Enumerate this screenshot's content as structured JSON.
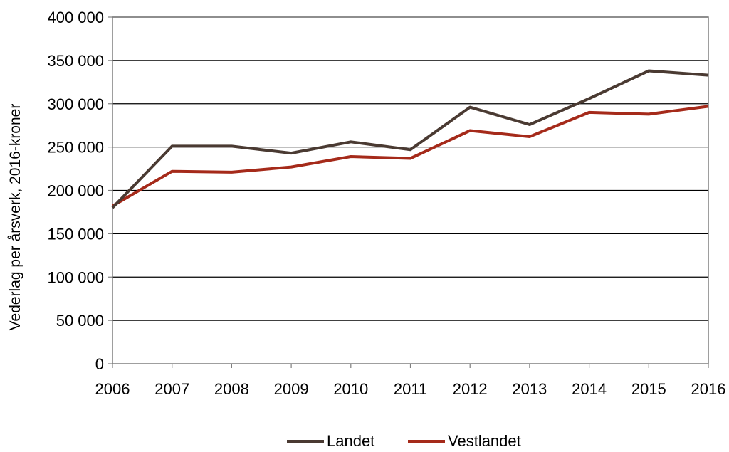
{
  "chart_data": {
    "type": "line",
    "title": "",
    "xlabel": "",
    "ylabel": "Vederlag per årsverk, 2016-kroner",
    "x": [
      "2006",
      "2007",
      "2008",
      "2009",
      "2010",
      "2011",
      "2012",
      "2013",
      "2014",
      "2015",
      "2016"
    ],
    "ylim": [
      0,
      400000
    ],
    "yticks": [
      0,
      50000,
      100000,
      150000,
      200000,
      250000,
      300000,
      350000,
      400000
    ],
    "ytick_labels": [
      "0",
      "50 000",
      "100 000",
      "150 000",
      "200 000",
      "250 000",
      "300 000",
      "350 000",
      "400 000"
    ],
    "grid": "horizontal",
    "legend_position": "bottom",
    "series": [
      {
        "name": "Landet",
        "color": "#4a3a32",
        "values": [
          180000,
          251000,
          251000,
          243000,
          256000,
          247000,
          296000,
          276000,
          306000,
          338000,
          333000
        ]
      },
      {
        "name": "Vestlandet",
        "color": "#a52a1a",
        "values": [
          182000,
          222000,
          221000,
          227000,
          239000,
          237000,
          269000,
          262000,
          290000,
          288000,
          297000
        ]
      }
    ]
  }
}
